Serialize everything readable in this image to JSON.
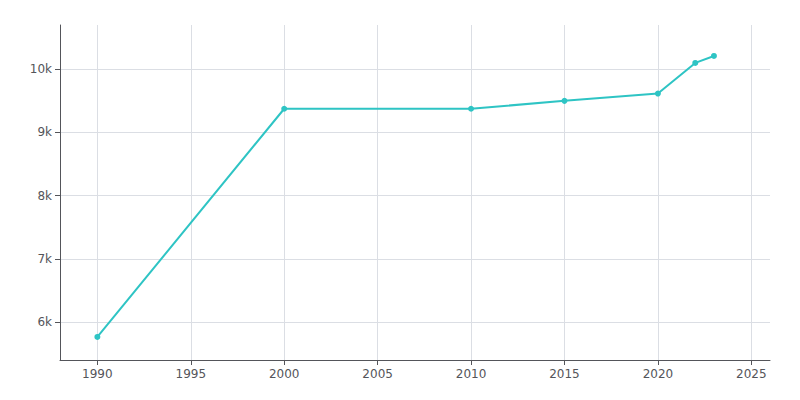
{
  "chart_data": {
    "type": "line",
    "x": [
      1990,
      2000,
      2010,
      2015,
      2020,
      2022,
      2023
    ],
    "values": [
      5765,
      9375,
      9375,
      9500,
      9615,
      10100,
      10210
    ],
    "color": "#2ec4c4",
    "marker": "circle",
    "xlim": [
      1988,
      2026
    ],
    "ylim": [
      5400,
      10700
    ],
    "xticks": [
      1990,
      1995,
      2000,
      2005,
      2010,
      2015,
      2020,
      2025
    ],
    "yticks": [
      {
        "value": 6000,
        "label": "6k"
      },
      {
        "value": 7000,
        "label": "7k"
      },
      {
        "value": 8000,
        "label": "8k"
      },
      {
        "value": 9000,
        "label": "9k"
      },
      {
        "value": 10000,
        "label": "10k"
      }
    ],
    "grid": true
  }
}
